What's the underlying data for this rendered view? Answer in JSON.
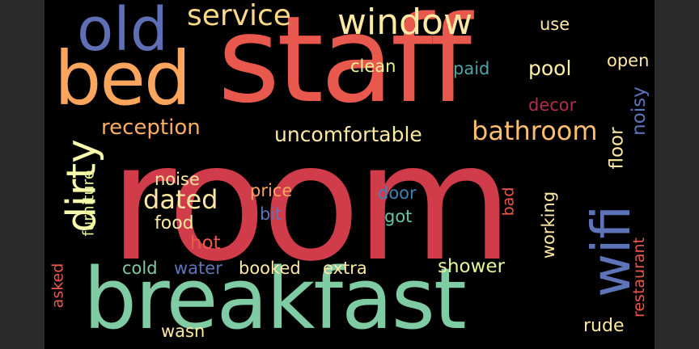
{
  "palette": {
    "red": "#d13c4b",
    "coral": "#e9584c",
    "orange": "#f57946",
    "light_orange": "#fca55d",
    "sand": "#fdd888",
    "cream": "#fde9a3",
    "pale_yellow": "#f7f9ad",
    "mint": "#7fcba4",
    "green": "#6bc4a4",
    "teal": "#4ea5a9",
    "blue": "#3c84b5",
    "indigo": "#5e4fa2",
    "dark_red": "#b32e4c"
  },
  "words": [
    {
      "text": "room",
      "color": "#d13c4b"
    },
    {
      "text": "staff",
      "color": "#e9584c"
    },
    {
      "text": "breakfast",
      "color": "#7fcba4"
    },
    {
      "text": "bed",
      "color": "#fca55d"
    },
    {
      "text": "old",
      "color": "#5f6fb5"
    },
    {
      "text": "service",
      "color": "#fdd888"
    },
    {
      "text": "window",
      "color": "#fde9a3"
    },
    {
      "text": "wifi",
      "color": "#5e74b8"
    },
    {
      "text": "dirty",
      "color": "#f7f9ad"
    },
    {
      "text": "bathroom",
      "color": "#fdbf6f"
    },
    {
      "text": "reception",
      "color": "#fdae61"
    },
    {
      "text": "uncomfortable",
      "color": "#fde9a3"
    },
    {
      "text": "dated",
      "color": "#fde9a3"
    },
    {
      "text": "clean",
      "color": "#e6f598"
    },
    {
      "text": "pool",
      "color": "#fef1a6"
    },
    {
      "text": "paid",
      "color": "#4ea5a9"
    },
    {
      "text": "use",
      "color": "#fde9a3"
    },
    {
      "text": "open",
      "color": "#fde9a3"
    },
    {
      "text": "decor",
      "color": "#b32e4c"
    },
    {
      "text": "noisy",
      "color": "#5e74b8"
    },
    {
      "text": "floor",
      "color": "#fde9a3"
    },
    {
      "text": "noise",
      "color": "#fde9a3"
    },
    {
      "text": "food",
      "color": "#fde9a3"
    },
    {
      "text": "hot",
      "color": "#e9584c"
    },
    {
      "text": "price",
      "color": "#fca55d"
    },
    {
      "text": "bit",
      "color": "#5e74b8"
    },
    {
      "text": "door",
      "color": "#3c84b5"
    },
    {
      "text": "got",
      "color": "#6bc4a4"
    },
    {
      "text": "bad",
      "color": "#e9584c"
    },
    {
      "text": "working",
      "color": "#fde9a3"
    },
    {
      "text": "furniture",
      "color": "#e6f598"
    },
    {
      "text": "cold",
      "color": "#7fcba4"
    },
    {
      "text": "water",
      "color": "#5e74b8"
    },
    {
      "text": "booked",
      "color": "#fde9a3"
    },
    {
      "text": "extra",
      "color": "#fde9a3"
    },
    {
      "text": "shower",
      "color": "#e6f598"
    },
    {
      "text": "restaurant",
      "color": "#e9584c"
    },
    {
      "text": "asked",
      "color": "#e9584c"
    },
    {
      "text": "wasn",
      "color": "#fde9a3"
    },
    {
      "text": "rude",
      "color": "#fde9a3"
    }
  ]
}
